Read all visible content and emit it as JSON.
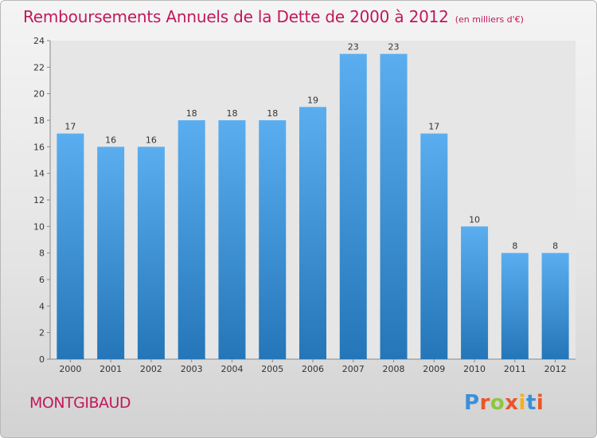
{
  "title": "Remboursements Annuels de la Dette de 2000 à 2012",
  "unit": "(en milliers d'€)",
  "location": "MONTGIBAUD",
  "brand": {
    "letters": [
      "P",
      "r",
      "o",
      "x",
      "i",
      "t",
      "i"
    ],
    "colors": [
      "#3a8fd9",
      "#e8572a",
      "#8dc63f",
      "#e8572a",
      "#f2b21b",
      "#3a8fd9",
      "#e8572a"
    ]
  },
  "colors": {
    "title": "#c2185b",
    "bar_top": "#5aaef0",
    "bar_bottom": "#2476b8"
  },
  "chart_data": {
    "type": "bar",
    "categories": [
      "2000",
      "2001",
      "2002",
      "2003",
      "2004",
      "2005",
      "2006",
      "2007",
      "2008",
      "2009",
      "2010",
      "2011",
      "2012"
    ],
    "values": [
      17,
      16,
      16,
      18,
      18,
      18,
      19,
      23,
      23,
      17,
      10,
      8,
      8
    ],
    "data_labels": [
      "17",
      "16",
      "16",
      "18",
      "18",
      "18",
      "19",
      "23",
      "23",
      "17",
      "10",
      "8",
      "8"
    ],
    "ylim": [
      0,
      24
    ],
    "yticks": [
      0,
      2,
      4,
      6,
      8,
      10,
      12,
      14,
      16,
      18,
      20,
      22,
      24
    ],
    "grid": false,
    "legend": "none"
  }
}
